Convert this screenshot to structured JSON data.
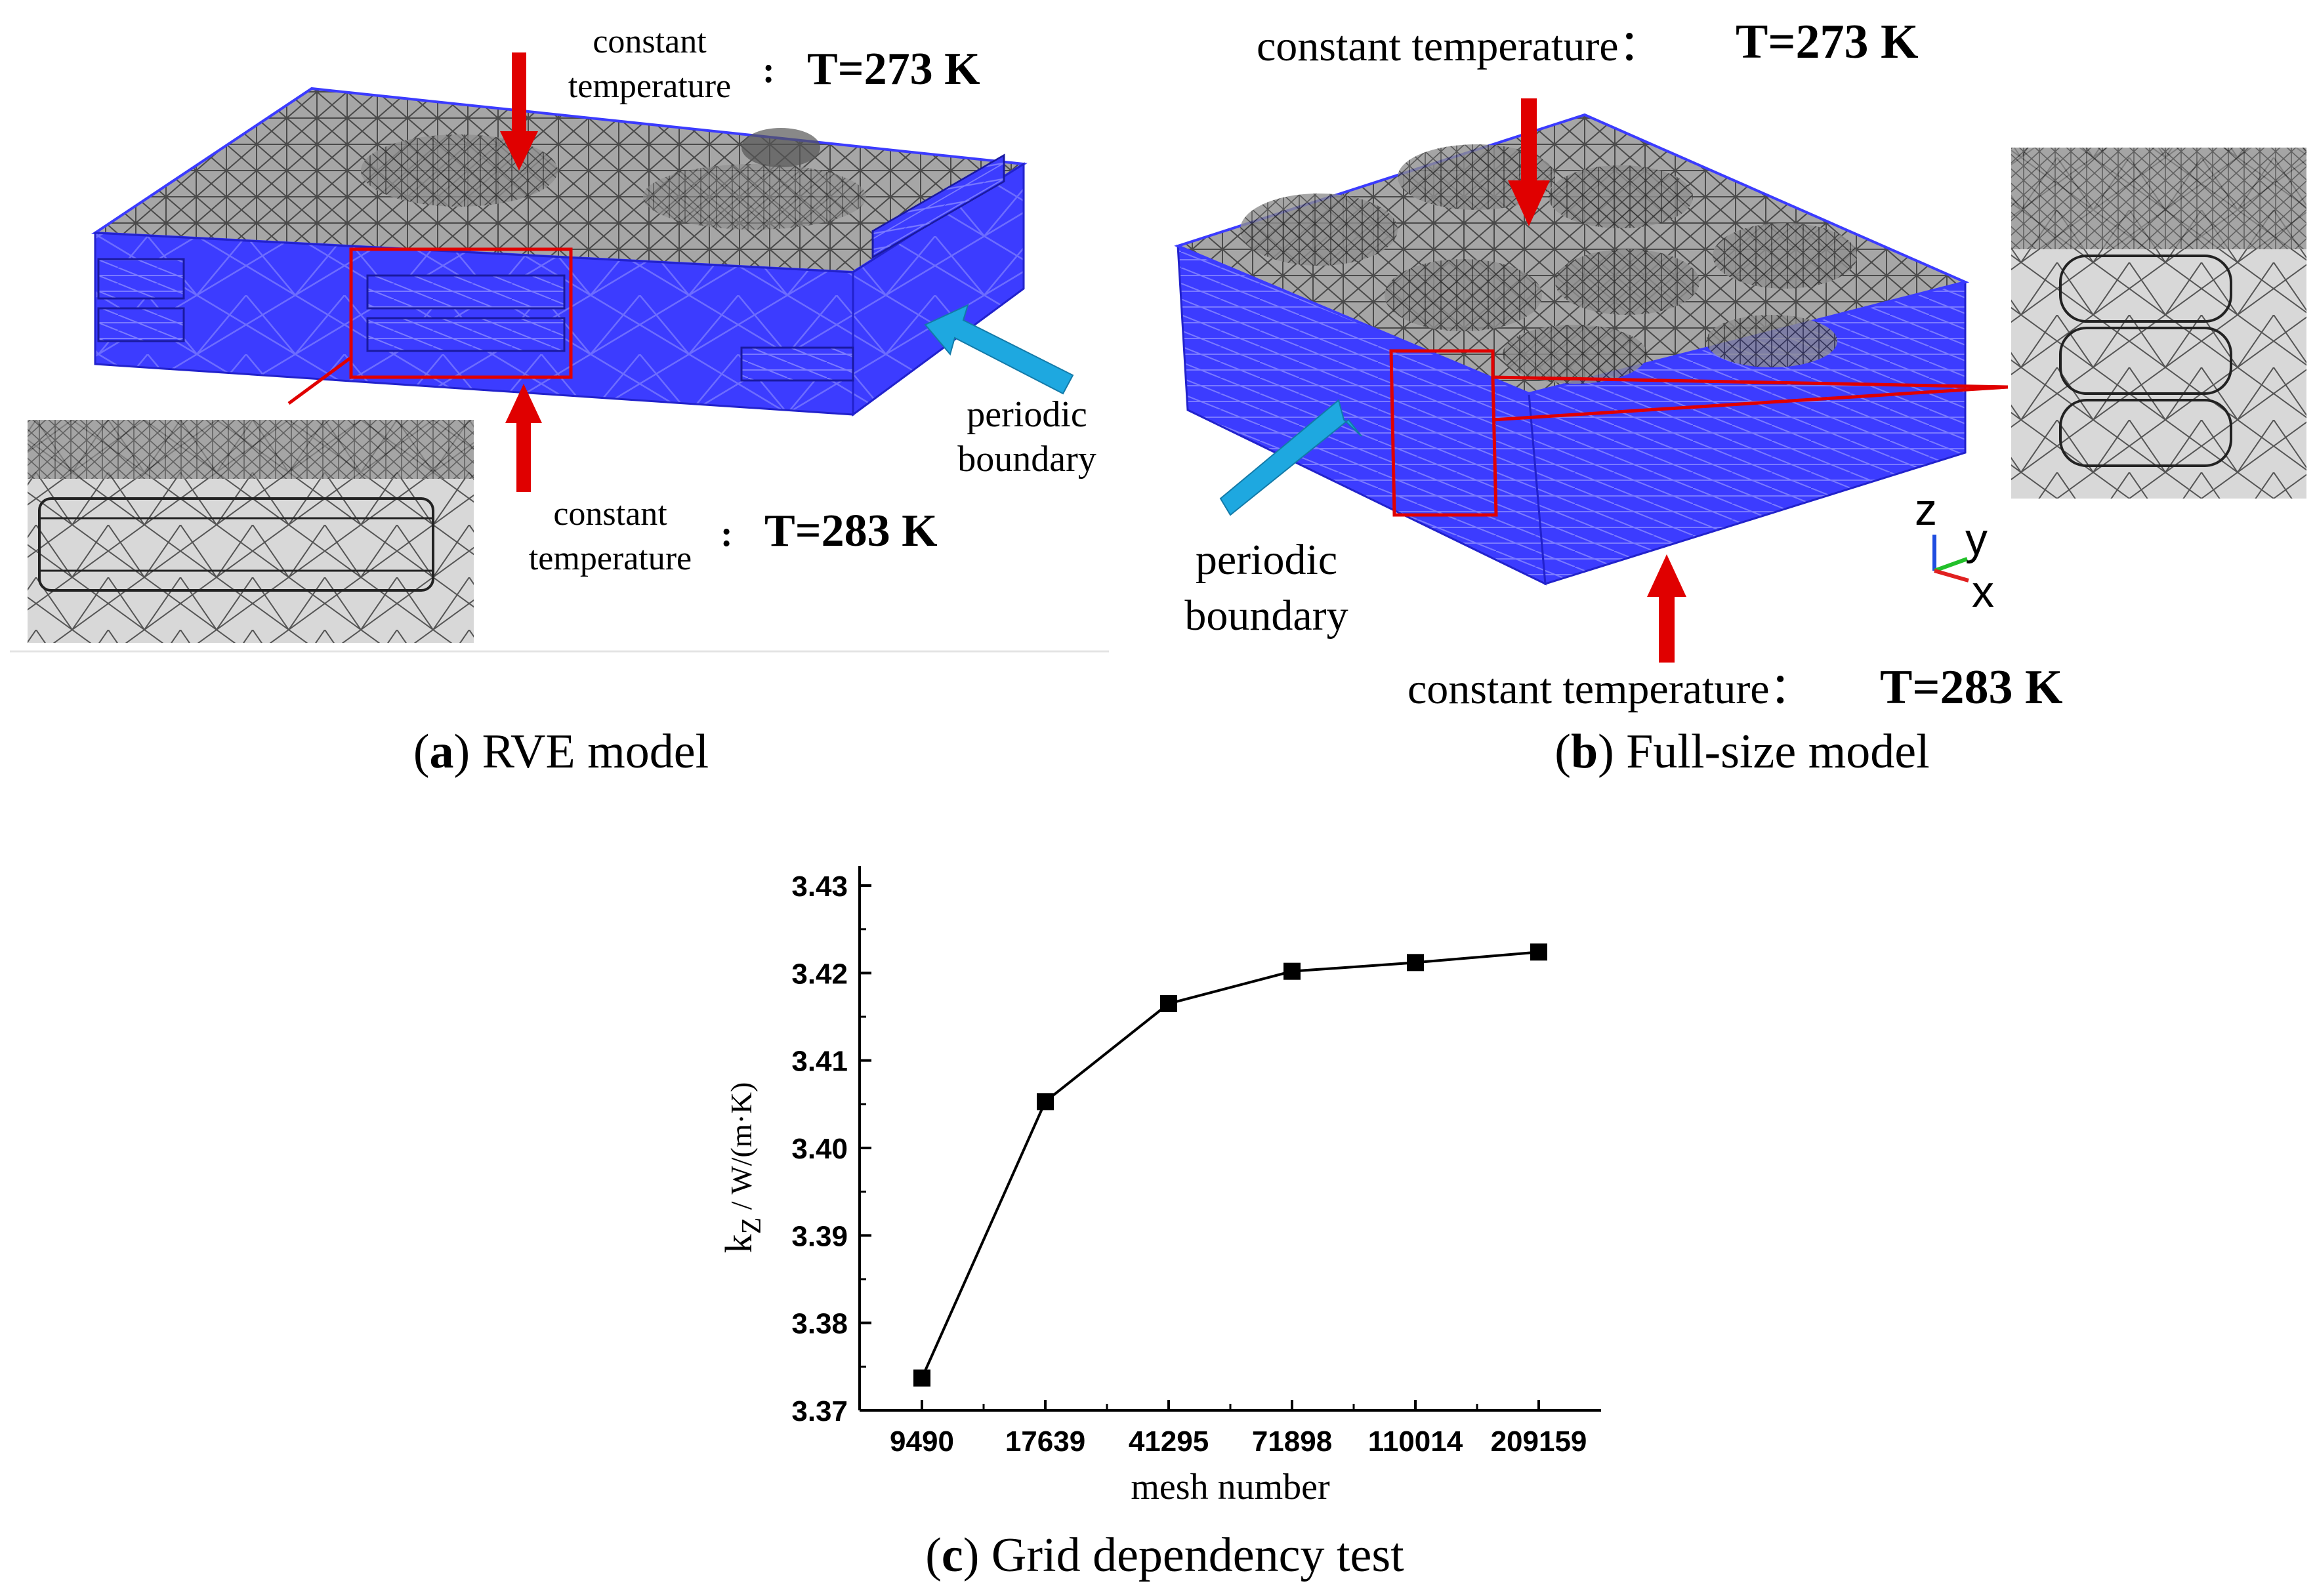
{
  "panel_a": {
    "caption_letter": "a",
    "caption_text": ") RVE model",
    "caption_open": "(",
    "top_label_line1": "constant",
    "top_label_line2": "temperature",
    "top_colon": ":",
    "top_value": "T=273 K",
    "bottom_label_line1": "constant",
    "bottom_label_line2": "temperature",
    "bottom_colon": ":",
    "bottom_value": "T=283 K",
    "side_label_line1": "periodic",
    "side_label_line2": "boundary"
  },
  "panel_b": {
    "caption_letter": "b",
    "caption_text": ") Full-size model",
    "caption_open": "(",
    "top_label": "constant temperature：",
    "top_value": "T=273 K",
    "bottom_label": "constant temperature：",
    "bottom_value": "T=283 K",
    "side_label_line1": "periodic",
    "side_label_line2": "boundary",
    "axis_z": "z",
    "axis_y": "y",
    "axis_x": "x"
  },
  "panel_c": {
    "caption_letter": "c",
    "caption_text": ") Grid dependency test",
    "caption_open": "("
  },
  "colors": {
    "blue_face": "#3b3bff",
    "red_arrow": "#e00000",
    "cyan_arrow": "#1ea8e0",
    "mesh_top": "#9a9a9a"
  },
  "chart_data": {
    "type": "line",
    "categories": [
      "9490",
      "17639",
      "41295",
      "71898",
      "110014",
      "209159"
    ],
    "values": [
      3.3737,
      3.4053,
      3.4165,
      3.4202,
      3.4212,
      3.4224
    ],
    "xlabel": "mesh number",
    "ylabel_main": "k",
    "ylabel_sub": "Z",
    "ylabel_unit": " / W/(m·K)",
    "ylim": [
      3.37,
      3.43
    ],
    "yticks": [
      "3.37",
      "3.38",
      "3.39",
      "3.40",
      "3.41",
      "3.42",
      "3.43"
    ],
    "marker": "square"
  }
}
